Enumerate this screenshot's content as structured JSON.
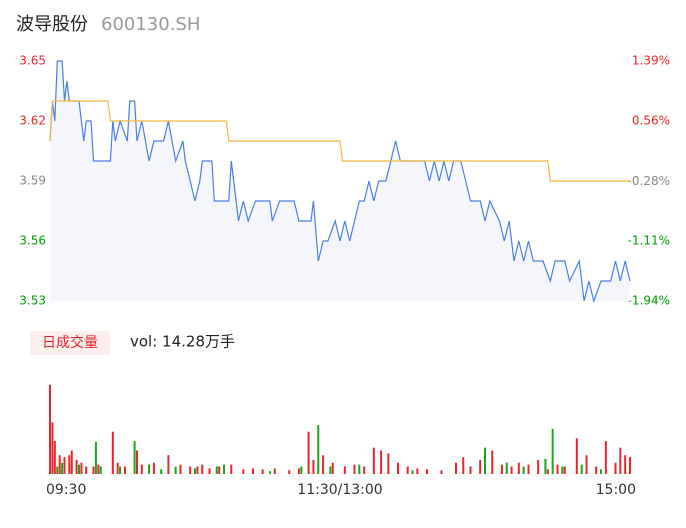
{
  "header": {
    "title": "波导股份",
    "code": "600130.SH"
  },
  "chart_data": {
    "type": "line",
    "xlim": [
      0,
      240
    ],
    "xticks": [
      {
        "value": 0,
        "label": "09:30"
      },
      {
        "value": 120,
        "label": "11:30/13:00"
      },
      {
        "value": 240,
        "label": "15:00"
      }
    ],
    "ylim": [
      3.53,
      3.65
    ],
    "yticks": [
      3.53,
      3.56,
      3.59,
      3.62,
      3.65
    ],
    "ytick_colors": [
      "#00a000",
      "#00a000",
      "#888888",
      "#e8262c",
      "#e8262c"
    ],
    "y2lim": [
      -1.94,
      1.39
    ],
    "y2ticks": [
      {
        "value": -1.94,
        "label": "-1.94%"
      },
      {
        "value": -1.11,
        "label": "-1.11%"
      },
      {
        "value": -0.28,
        "label": "-0.28%"
      },
      {
        "value": 0.56,
        "label": "0.56%"
      },
      {
        "value": 1.39,
        "label": "1.39%"
      }
    ],
    "area_color": "#f4f6fb",
    "series": [
      {
        "color": "#4a7fe0",
        "x": [
          0,
          1,
          2,
          3,
          5,
          6,
          7,
          8,
          12,
          14,
          15,
          17,
          18,
          25,
          26,
          27,
          29,
          32,
          33,
          35,
          36,
          38,
          41,
          43,
          47,
          49,
          52,
          55,
          56,
          58,
          60,
          62,
          63,
          67,
          68,
          74,
          75,
          77,
          78,
          80,
          82,
          85,
          91,
          92,
          95,
          101,
          103,
          108,
          109,
          111,
          113,
          115,
          118,
          120,
          122,
          124,
          126,
          128,
          130,
          132,
          134,
          136,
          139,
          141,
          143,
          145,
          149,
          155,
          157,
          159,
          161,
          163,
          165,
          167,
          170,
          172,
          174,
          178,
          180,
          182,
          186,
          188,
          190,
          192,
          194,
          196,
          198,
          200,
          204,
          207,
          209,
          213,
          215,
          219,
          221,
          223,
          225,
          228,
          232,
          234,
          236,
          238,
          240
        ],
        "values": [
          3.61,
          3.63,
          3.62,
          3.65,
          3.65,
          3.63,
          3.64,
          3.63,
          3.63,
          3.61,
          3.62,
          3.62,
          3.6,
          3.6,
          3.62,
          3.61,
          3.62,
          3.61,
          3.63,
          3.63,
          3.61,
          3.62,
          3.6,
          3.61,
          3.61,
          3.62,
          3.6,
          3.61,
          3.6,
          3.59,
          3.58,
          3.59,
          3.6,
          3.6,
          3.58,
          3.58,
          3.6,
          3.58,
          3.57,
          3.58,
          3.57,
          3.58,
          3.58,
          3.57,
          3.58,
          3.58,
          3.57,
          3.57,
          3.58,
          3.55,
          3.56,
          3.56,
          3.57,
          3.56,
          3.57,
          3.56,
          3.57,
          3.58,
          3.58,
          3.59,
          3.58,
          3.59,
          3.59,
          3.6,
          3.61,
          3.6,
          3.6,
          3.6,
          3.59,
          3.6,
          3.59,
          3.6,
          3.59,
          3.6,
          3.6,
          3.59,
          3.58,
          3.58,
          3.57,
          3.58,
          3.57,
          3.56,
          3.57,
          3.55,
          3.56,
          3.55,
          3.56,
          3.55,
          3.55,
          3.54,
          3.55,
          3.55,
          3.54,
          3.55,
          3.53,
          3.54,
          3.53,
          3.54,
          3.54,
          3.55,
          3.54,
          3.55,
          3.54
        ]
      },
      {
        "color": "#f5b83d",
        "x": [
          0,
          1,
          24,
          25,
          73,
          74,
          120,
          121,
          206,
          207,
          240
        ],
        "values": [
          3.61,
          3.63,
          3.63,
          3.62,
          3.62,
          3.61,
          3.61,
          3.6,
          3.6,
          3.59,
          3.59
        ]
      }
    ],
    "volume": {
      "button": "日成交量",
      "label": "vol: 14.28万手",
      "ylim": [
        0,
        100
      ],
      "up_color": "#e8262c",
      "down_color": "#18a818",
      "up": {
        "x": [
          0,
          1,
          2,
          4,
          6,
          8,
          9,
          11,
          13,
          15,
          18,
          20,
          26,
          28,
          31,
          36,
          38,
          43,
          49,
          54,
          58,
          61,
          63,
          66,
          70,
          75,
          80,
          84,
          88,
          93,
          99,
          103,
          107,
          109,
          113,
          117,
          122,
          126,
          130,
          134,
          137,
          140,
          144,
          148,
          152,
          156,
          162,
          168,
          171,
          174,
          178,
          183,
          187,
          191,
          194,
          198,
          202,
          206,
          210,
          213,
          218,
          222,
          226,
          230,
          234,
          236,
          238,
          240
        ],
        "values": [
          95,
          55,
          35,
          20,
          18,
          20,
          25,
          15,
          12,
          8,
          8,
          10,
          45,
          12,
          8,
          25,
          10,
          12,
          20,
          10,
          8,
          8,
          10,
          6,
          8,
          10,
          5,
          6,
          5,
          6,
          4,
          6,
          45,
          15,
          20,
          12,
          8,
          10,
          8,
          28,
          25,
          22,
          12,
          8,
          6,
          5,
          4,
          12,
          18,
          8,
          15,
          25,
          10,
          8,
          12,
          10,
          15,
          5,
          10,
          8,
          38,
          20,
          8,
          35,
          12,
          28,
          20,
          18
        ]
      },
      "down": {
        "x": [
          3,
          5,
          12,
          19,
          21,
          29,
          35,
          41,
          46,
          52,
          60,
          69,
          72,
          91,
          104,
          111,
          116,
          128,
          150,
          180,
          189,
          196,
          205,
          208,
          212,
          220,
          228
        ],
        "values": [
          8,
          12,
          10,
          34,
          8,
          8,
          35,
          10,
          5,
          8,
          6,
          8,
          10,
          3,
          8,
          52,
          8,
          10,
          4,
          28,
          12,
          8,
          16,
          48,
          8,
          10,
          5
        ]
      }
    }
  }
}
